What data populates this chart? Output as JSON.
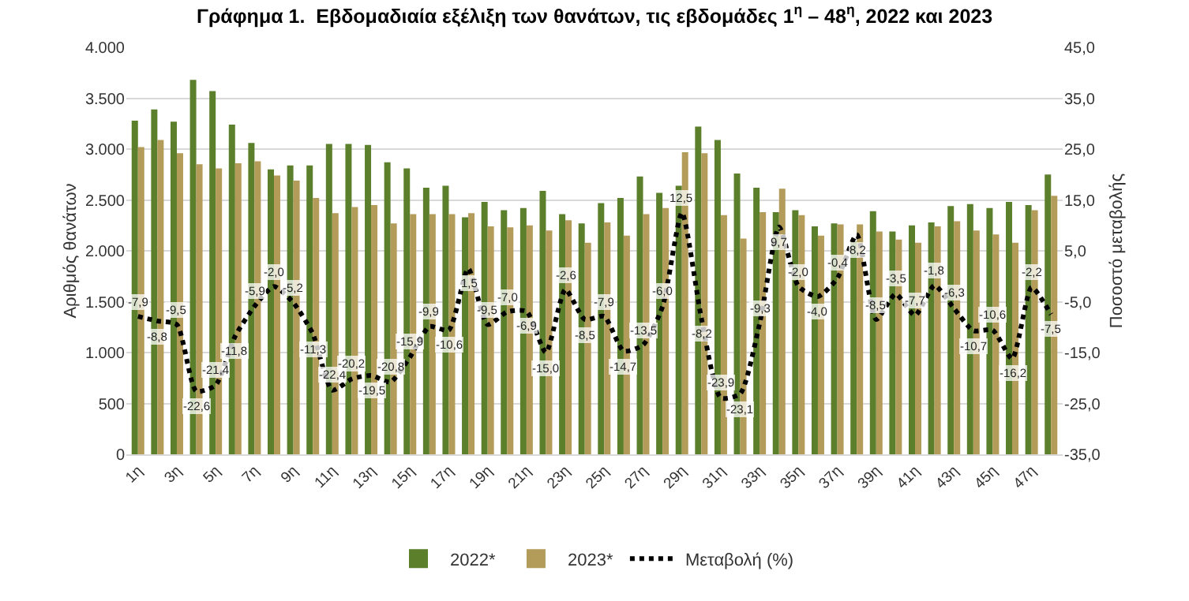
{
  "chart_data": {
    "type": "bar",
    "title": "Γράφημα 1.  Εβδομαδιαία εξέλιξη των θανάτων, τις εβδομάδες 1$^{η}$ – 48$^{η}$, 2022 και 2023",
    "ylabel": "Αριθμός θανάτων",
    "y2label": "Ποσοστό μεταβολής",
    "categories": [
      "1η",
      null,
      "3η",
      null,
      "5η",
      null,
      "7η",
      null,
      "9η",
      null,
      "11η",
      null,
      "13η",
      null,
      "15η",
      null,
      "17η",
      null,
      "19η",
      null,
      "21η",
      null,
      "23η",
      null,
      "25η",
      null,
      "27η",
      null,
      "29η",
      null,
      "31η",
      null,
      "33η",
      null,
      "35η",
      null,
      "37η",
      null,
      "39η",
      null,
      "41η",
      null,
      "43η",
      null,
      "45η",
      null,
      "47η",
      null
    ],
    "series": [
      {
        "name": "2022*",
        "color": "#5b7f2a",
        "values": [
          3280,
          3390,
          3270,
          3680,
          3570,
          3240,
          3060,
          2800,
          2840,
          2840,
          3050,
          3050,
          3040,
          2870,
          2810,
          2620,
          2640,
          2330,
          2480,
          2400,
          2420,
          2590,
          2360,
          2270,
          2470,
          2520,
          2730,
          2570,
          2640,
          3220,
          3090,
          2760,
          2620,
          2380,
          2400,
          2240,
          2270,
          2090,
          2390,
          2190,
          2250,
          2280,
          2440,
          2460,
          2420,
          2480,
          2450,
          2750
        ]
      },
      {
        "name": "2023*",
        "color": "#b39b5a",
        "values": [
          3020,
          3090,
          2960,
          2850,
          2810,
          2860,
          2880,
          2740,
          2690,
          2520,
          2370,
          2430,
          2450,
          2270,
          2360,
          2360,
          2360,
          2370,
          2240,
          2230,
          2250,
          2200,
          2300,
          2080,
          2280,
          2150,
          2360,
          2420,
          2970,
          2960,
          2350,
          2120,
          2380,
          2610,
          2350,
          2150,
          2260,
          2260,
          2190,
          2110,
          2080,
          2240,
          2290,
          2200,
          2160,
          2080,
          2400,
          2540
        ]
      },
      {
        "name": "Μεταβολή (%)",
        "type": "line",
        "axis": "y2",
        "color": "#000000",
        "line_style": "dotted",
        "marker": "none",
        "values": [
          -7.9,
          -8.8,
          -9.5,
          -22.6,
          -21.4,
          -11.8,
          -5.9,
          -2.0,
          -5.2,
          -11.3,
          -22.4,
          -20.2,
          -19.5,
          -20.8,
          -15.9,
          -9.9,
          -10.6,
          1.5,
          -9.5,
          -7.0,
          -6.9,
          -15.0,
          -2.6,
          -8.5,
          -7.9,
          -14.7,
          -13.5,
          -6.0,
          12.5,
          -8.2,
          -23.9,
          -23.1,
          -9.3,
          9.7,
          -2.0,
          -4.0,
          -0.4,
          8.2,
          -8.5,
          -3.5,
          -7.7,
          -1.8,
          -6.3,
          -10.7,
          -10.6,
          -16.2,
          -2.2,
          -7.5
        ],
        "value_labels": [
          "-7,9",
          "-8,8",
          "-9,5",
          "-22,6",
          "-21,4",
          "-11,8",
          "-5,9",
          "-2,0",
          "-5,2",
          "-11,3",
          "-22,4",
          "-20,2",
          "-19,5",
          "-20,8",
          "-15,9",
          "-9,9",
          "-10,6",
          "1,5",
          "-9,5",
          "-7,0",
          "-6,9",
          "-15,0",
          "-2,6",
          "-8,5",
          "-7,9",
          "-14,7",
          "-13,5",
          "-6,0",
          "12,5",
          "-8,2",
          "-23,9",
          "-23,1",
          "-9,3",
          "9,7",
          "-2,0",
          "-4,0",
          "-0,4",
          "8,2",
          "-8,5",
          "-3,5",
          "-7,7",
          "-1,8",
          "-6,3",
          "-10,7",
          "-10,6",
          "-16,2",
          "-2,2",
          "-7,5"
        ]
      }
    ],
    "ylim": [
      0,
      4000
    ],
    "yticks": [
      0,
      {
        "value": 500,
        "label": "500"
      },
      {
        "value": 1000,
        "label": "1.000"
      },
      {
        "value": 1500,
        "label": "1.500"
      },
      {
        "value": 2000,
        "label": "2.000"
      },
      {
        "value": 2500,
        "label": "2.500"
      },
      {
        "value": 3000,
        "label": "3.000"
      },
      {
        "value": 3500,
        "label": "3.500"
      },
      {
        "value": 4000,
        "label": "4.000"
      }
    ],
    "y2lim": [
      -35,
      45
    ],
    "y2ticks": [
      {
        "value": -35,
        "label": "-35,0"
      },
      {
        "value": -25,
        "label": "-25,0"
      },
      {
        "value": -15,
        "label": "-15,0"
      },
      {
        "value": -5,
        "label": "-5,0"
      },
      {
        "value": 5,
        "label": "5,0"
      },
      {
        "value": 15,
        "label": "15,0"
      },
      {
        "value": 25,
        "label": "25,0"
      },
      {
        "value": 35,
        "label": "35,0"
      },
      {
        "value": 45,
        "label": "45,0"
      }
    ],
    "grid": "y",
    "legend": "bottom"
  }
}
